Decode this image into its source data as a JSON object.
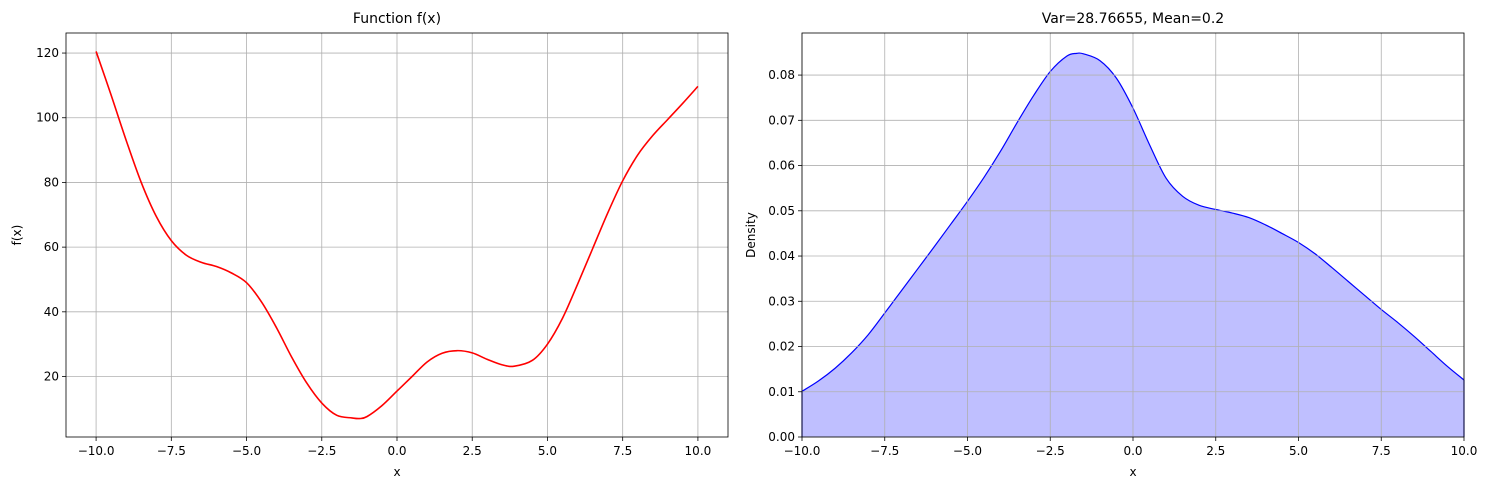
{
  "chart_data": [
    {
      "type": "line",
      "title": "Function f(x)",
      "xlabel": "x",
      "ylabel": "f(x)",
      "xlim": [
        -11,
        11
      ],
      "ylim": [
        1.3,
        126.2
      ],
      "xticks": [
        -10,
        -7.5,
        -5,
        -2.5,
        0,
        2.5,
        5,
        7.5,
        10
      ],
      "xtick_labels": [
        "−10.0",
        "−7.5",
        "−5.0",
        "−2.5",
        "0.0",
        "2.5",
        "5.0",
        "7.5",
        "10.0"
      ],
      "yticks": [
        20,
        40,
        60,
        80,
        100,
        120
      ],
      "ytick_labels": [
        "20",
        "40",
        "60",
        "80",
        "100",
        "120"
      ],
      "grid": true,
      "color": "#ff0000",
      "series": [
        {
          "x": [
            -10,
            -9.5,
            -9,
            -8.5,
            -8,
            -7.5,
            -7,
            -6.5,
            -6,
            -5.5,
            -5,
            -4.5,
            -4,
            -3.5,
            -3,
            -2.5,
            -2,
            -1.5,
            -1.25,
            -1,
            -0.5,
            0,
            0.5,
            1,
            1.5,
            2,
            2.5,
            3,
            3.5,
            3.9,
            4.5,
            5,
            5.5,
            6,
            6.5,
            7,
            7.5,
            8,
            8.5,
            9,
            9.5,
            10
          ],
          "y": [
            120.5,
            107,
            93,
            80,
            69.5,
            62,
            57.5,
            55.3,
            54,
            52,
            49,
            43,
            35,
            26,
            18,
            11.8,
            8,
            7.2,
            7,
            7.6,
            11,
            15.5,
            20,
            24.5,
            27.2,
            28,
            27.3,
            25.3,
            23.6,
            23.2,
            25,
            30,
            38,
            48.5,
            59.5,
            70.5,
            80.5,
            88.5,
            94.5,
            99.5,
            104.5,
            109.7
          ]
        }
      ]
    },
    {
      "type": "area",
      "title": "Var=28.76655, Mean=0.2",
      "xlabel": "x",
      "ylabel": "Density",
      "xlim": [
        -10,
        10
      ],
      "ylim": [
        0,
        0.0893
      ],
      "xticks": [
        -10,
        -7.5,
        -5,
        -2.5,
        0,
        2.5,
        5,
        7.5,
        10
      ],
      "xtick_labels": [
        "−10.0",
        "−7.5",
        "−5.0",
        "−2.5",
        "0.0",
        "2.5",
        "5.0",
        "7.5",
        "10.0"
      ],
      "yticks": [
        0,
        0.01,
        0.02,
        0.03,
        0.04,
        0.05,
        0.06,
        0.07,
        0.08
      ],
      "ytick_labels": [
        "0.00",
        "0.01",
        "0.02",
        "0.03",
        "0.04",
        "0.05",
        "0.06",
        "0.07",
        "0.08"
      ],
      "grid": true,
      "color": "#0000ff",
      "fill_color": "#bfbfff",
      "series": [
        {
          "x": [
            -10,
            -9.5,
            -9,
            -8.5,
            -8,
            -7.5,
            -7,
            -6.5,
            -6,
            -5.5,
            -5,
            -4.5,
            -4,
            -3.5,
            -3,
            -2.5,
            -2,
            -1.7,
            -1.5,
            -1,
            -0.5,
            0,
            0.5,
            1,
            1.5,
            2,
            2.5,
            3,
            3.5,
            4,
            4.5,
            5,
            5.5,
            6,
            6.5,
            7,
            7.5,
            8,
            8.5,
            9,
            9.5,
            10
          ],
          "y": [
            0.0101,
            0.0124,
            0.0152,
            0.0186,
            0.0226,
            0.0274,
            0.0323,
            0.0372,
            0.0421,
            0.0471,
            0.0521,
            0.0574,
            0.0632,
            0.0695,
            0.0755,
            0.0808,
            0.0842,
            0.0848,
            0.0847,
            0.0832,
            0.0793,
            0.0727,
            0.0646,
            0.0572,
            0.0532,
            0.0512,
            0.0503,
            0.0495,
            0.0485,
            0.0469,
            0.045,
            0.043,
            0.0405,
            0.0375,
            0.0344,
            0.0313,
            0.0282,
            0.0253,
            0.0222,
            0.0189,
            0.0156,
            0.0126
          ]
        }
      ]
    }
  ]
}
